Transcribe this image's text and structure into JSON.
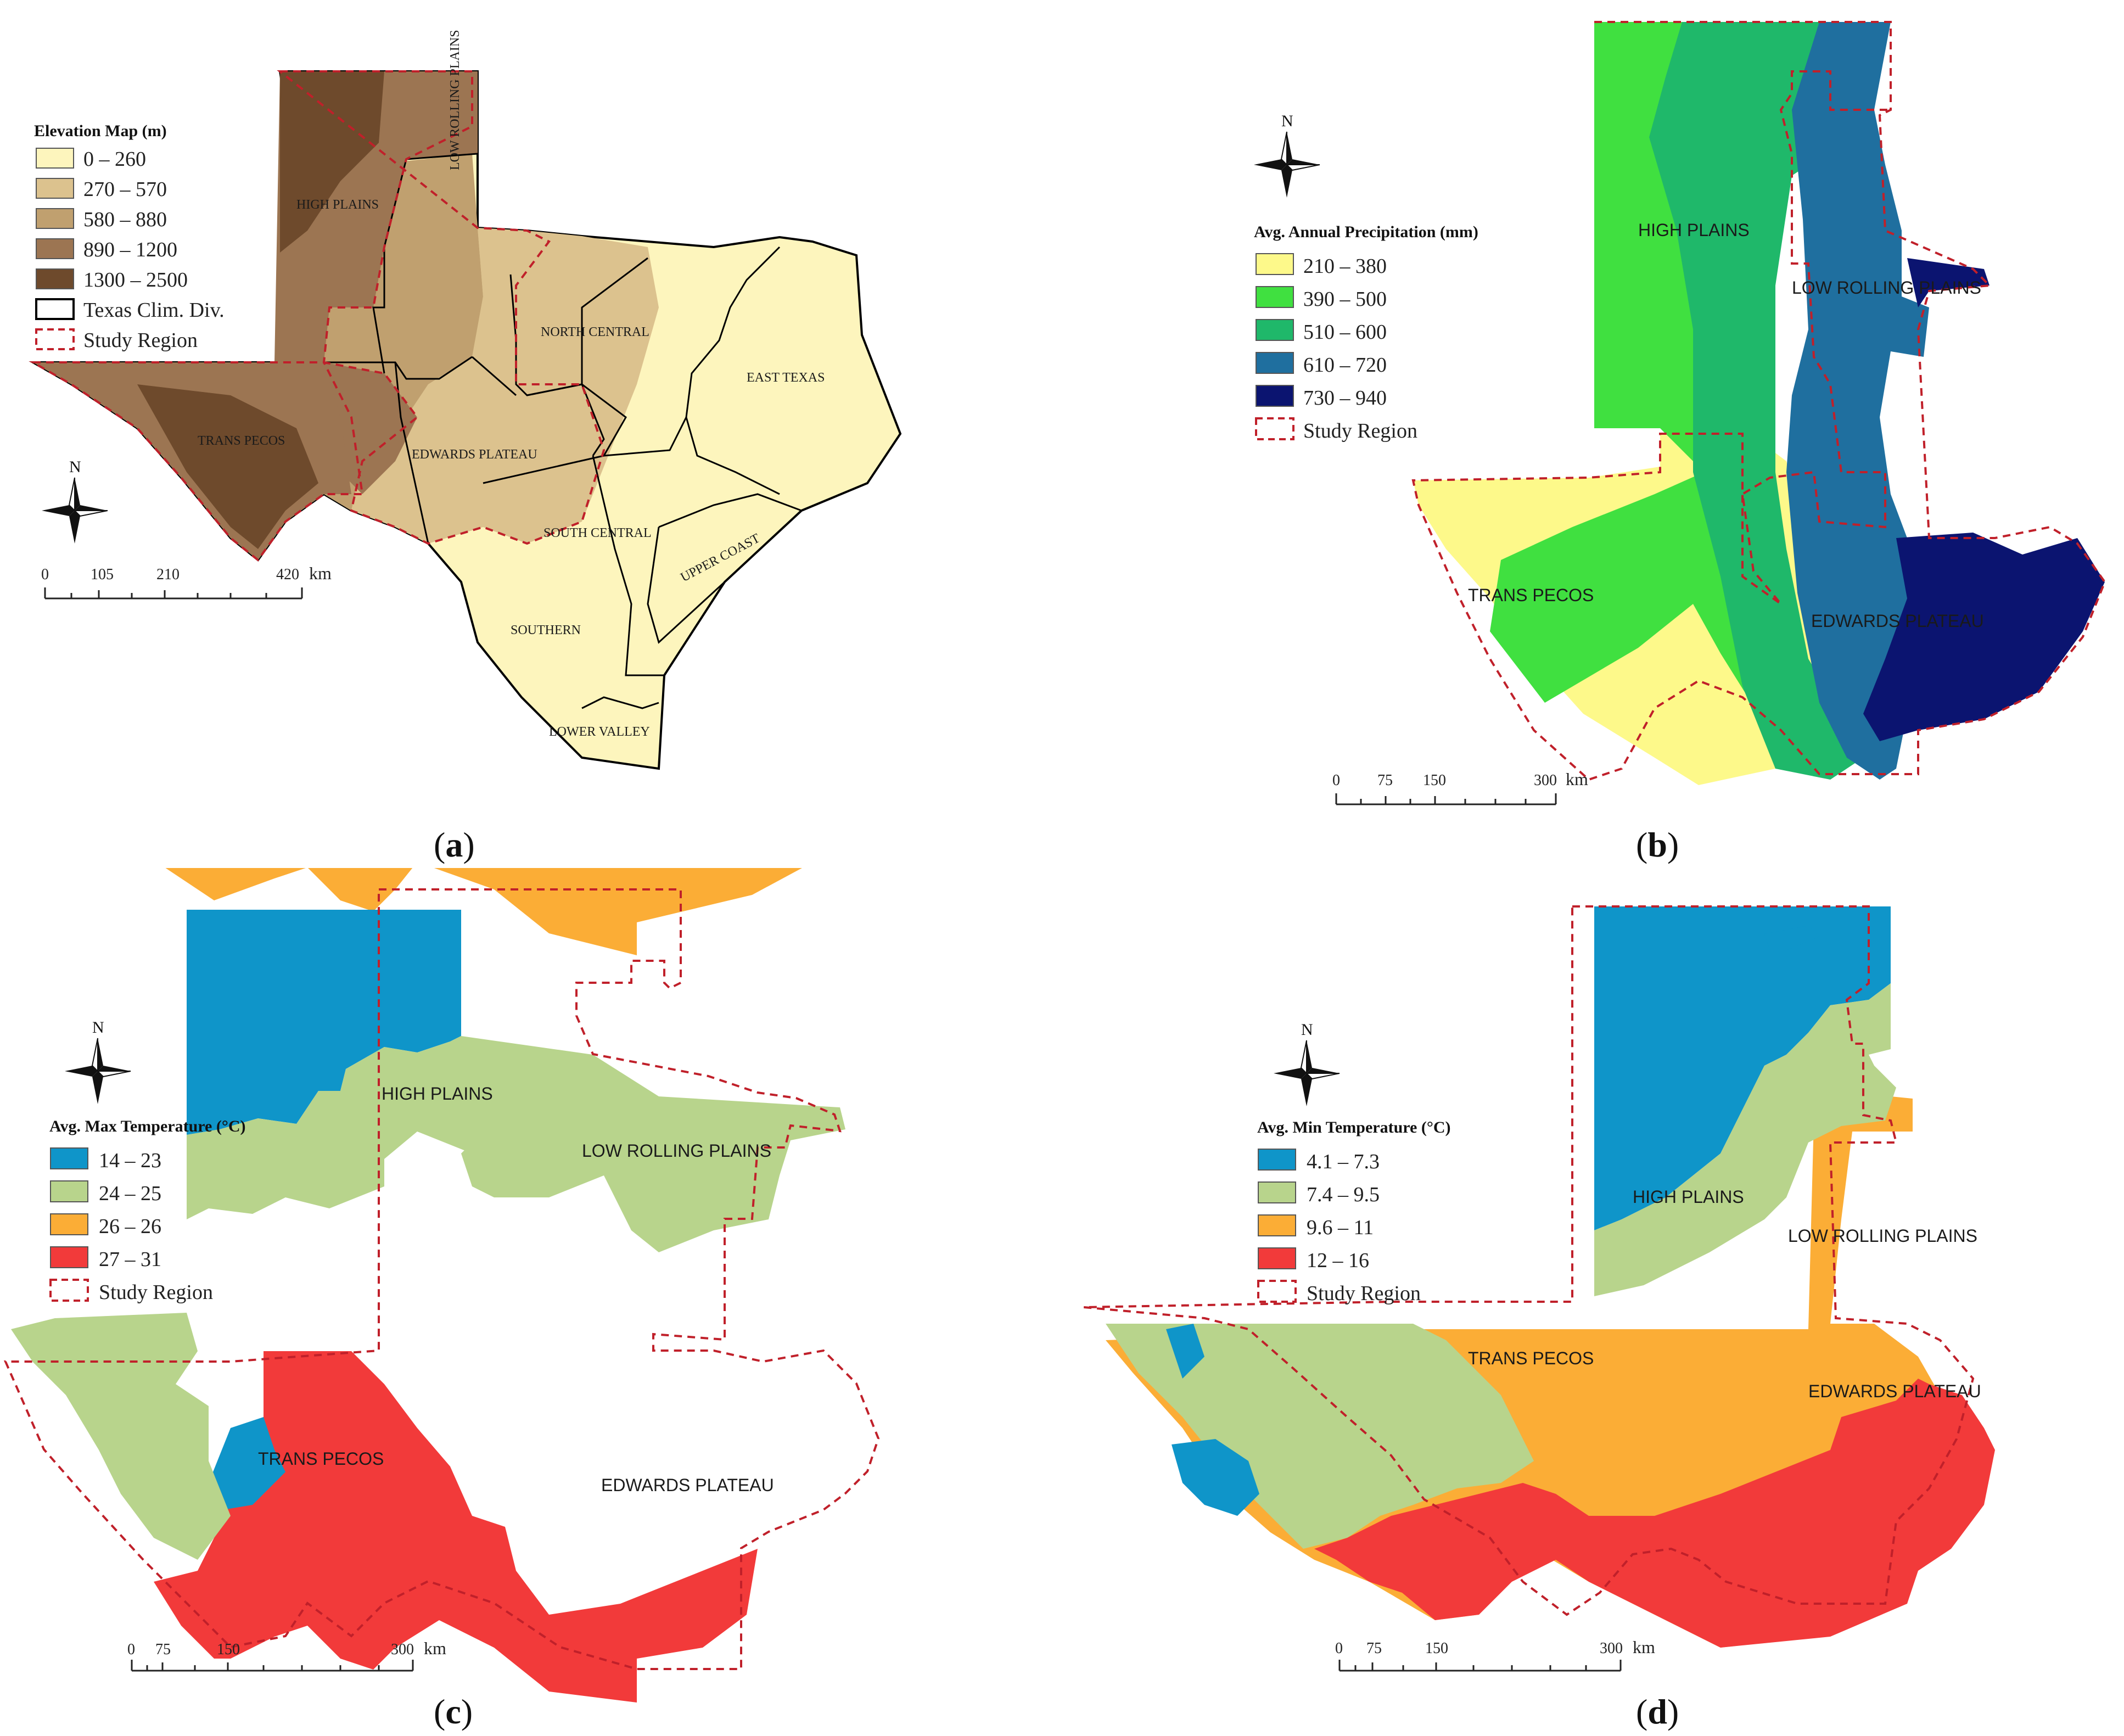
{
  "panels": {
    "a": {
      "caption_letter": "a",
      "legend": {
        "title": "Elevation Map (m)",
        "items": [
          {
            "label": "0 – 260",
            "color": "#fdf5bd"
          },
          {
            "label": "270 – 570",
            "color": "#dcc28e"
          },
          {
            "label": "580 – 880",
            "color": "#c0a06f"
          },
          {
            "label": "890 – 1200",
            "color": "#9c7552"
          },
          {
            "label": "1300 – 2500",
            "color": "#6e4a2c"
          },
          {
            "label": "Texas Clim. Div.",
            "color": "#000000"
          },
          {
            "label": "Study Region",
            "color": "#c0202a"
          }
        ]
      },
      "regions": [
        "HIGH PLAINS",
        "LOW ROLLING PLAINS",
        "NORTH CENTRAL",
        "EAST TEXAS",
        "TRANS PECOS",
        "EDWARDS PLATEAU",
        "SOUTH CENTRAL",
        "UPPER COAST",
        "SOUTHERN",
        "LOWER VALLEY"
      ],
      "scale": {
        "ticks": [
          "0",
          "105",
          "210",
          "420"
        ],
        "unit": "km"
      },
      "north": "N"
    },
    "b": {
      "caption_letter": "b",
      "legend": {
        "title": "Avg. Annual Precipitation (mm)",
        "items": [
          {
            "label": "210 – 380",
            "color": "#fdf98a"
          },
          {
            "label": "390 – 500",
            "color": "#40e040"
          },
          {
            "label": "510 – 600",
            "color": "#1fb86a"
          },
          {
            "label": "610 – 720",
            "color": "#1f6f9f"
          },
          {
            "label": "730 – 940",
            "color": "#0b1470"
          },
          {
            "label": "Study Region",
            "color": "#c0202a"
          }
        ]
      },
      "regions": [
        "HIGH PLAINS",
        "LOW ROLLING PLAINS",
        "TRANS PECOS",
        "EDWARDS PLATEAU"
      ],
      "scale": {
        "ticks": [
          "0",
          "75",
          "150",
          "300"
        ],
        "unit": "km"
      },
      "north": "N"
    },
    "c": {
      "caption_letter": "c",
      "legend": {
        "title": "Avg. Max Temperature (°C)",
        "items": [
          {
            "label": "14 – 23",
            "color": "#0f95c9"
          },
          {
            "label": "24 – 25",
            "color": "#b8d48c"
          },
          {
            "label": "26 – 26",
            "color": "#fbad36"
          },
          {
            "label": "27 – 31",
            "color": "#f23a3a"
          },
          {
            "label": "Study Region",
            "color": "#c0202a"
          }
        ]
      },
      "regions": [
        "HIGH PLAINS",
        "LOW ROLLING PLAINS",
        "TRANS PECOS",
        "EDWARDS PLATEAU"
      ],
      "scale": {
        "ticks": [
          "0",
          "75",
          "150",
          "300"
        ],
        "unit": "km"
      },
      "north": "N"
    },
    "d": {
      "caption_letter": "d",
      "legend": {
        "title": "Avg. Min Temperature (°C)",
        "items": [
          {
            "label": "4.1 – 7.3",
            "color": "#0f95c9"
          },
          {
            "label": "7.4 – 9.5",
            "color": "#b8d48c"
          },
          {
            "label": "9.6 – 11",
            "color": "#fbad36"
          },
          {
            "label": "12 – 16",
            "color": "#f23a3a"
          },
          {
            "label": "Study Region",
            "color": "#c0202a"
          }
        ]
      },
      "regions": [
        "HIGH PLAINS",
        "LOW ROLLING PLAINS",
        "TRANS PECOS",
        "EDWARDS PLATEAU"
      ],
      "scale": {
        "ticks": [
          "0",
          "75",
          "150",
          "300"
        ],
        "unit": "km"
      },
      "north": "N"
    }
  }
}
